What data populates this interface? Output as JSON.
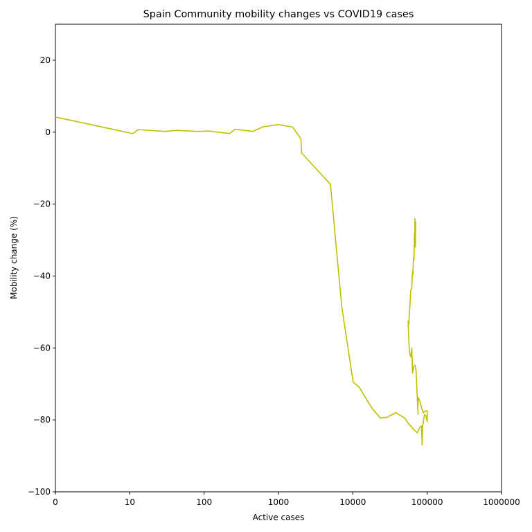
{
  "chart_data": {
    "type": "line",
    "title": "Spain Community mobility changes vs COVID19 cases",
    "xlabel": "Active cases",
    "ylabel": "Mobility change (%)",
    "x_scale": "log",
    "xlim": [
      1,
      1000000
    ],
    "ylim": [
      -100,
      30
    ],
    "grid": false,
    "x_ticks": [
      {
        "value": 1,
        "label": "0"
      },
      {
        "value": 10,
        "label": "10"
      },
      {
        "value": 100,
        "label": "100"
      },
      {
        "value": 1000,
        "label": "1000"
      },
      {
        "value": 10000,
        "label": "10000"
      },
      {
        "value": 100000,
        "label": "100000"
      },
      {
        "value": 1000000,
        "label": "1000000"
      }
    ],
    "y_ticks": [
      {
        "value": 20,
        "label": "20"
      },
      {
        "value": 0,
        "label": "0"
      },
      {
        "value": -20,
        "label": "−20"
      },
      {
        "value": -40,
        "label": "−40"
      },
      {
        "value": -60,
        "label": "−60"
      },
      {
        "value": -80,
        "label": "−80"
      },
      {
        "value": -100,
        "label": "−100"
      }
    ],
    "series": [
      {
        "color": "#bfbf00",
        "points": [
          [
            1,
            4.2
          ],
          [
            11,
            -0.4
          ],
          [
            13,
            0.7
          ],
          [
            30,
            0.2
          ],
          [
            42,
            0.5
          ],
          [
            80,
            0.2
          ],
          [
            115,
            0.3
          ],
          [
            220,
            -0.4
          ],
          [
            260,
            0.8
          ],
          [
            450,
            0.2
          ],
          [
            620,
            1.5
          ],
          [
            1000,
            2.1
          ],
          [
            1550,
            1.4
          ],
          [
            2000,
            -1.8
          ],
          [
            2050,
            -5.8
          ],
          [
            5000,
            -14.5
          ],
          [
            7100,
            -48.5
          ],
          [
            10100,
            -69.5
          ],
          [
            12300,
            -71.0
          ],
          [
            15500,
            -74.5
          ],
          [
            18500,
            -77.0
          ],
          [
            23500,
            -79.5
          ],
          [
            28500,
            -79.3
          ],
          [
            38000,
            -78.0
          ],
          [
            50000,
            -79.5
          ],
          [
            55000,
            -80.8
          ],
          [
            62000,
            -82.0
          ],
          [
            68000,
            -83.0
          ],
          [
            74000,
            -83.6
          ],
          [
            80000,
            -82.0
          ],
          [
            84000,
            -81.7
          ],
          [
            85500,
            -87.0
          ],
          [
            86500,
            -82.0
          ],
          [
            92000,
            -78.5
          ],
          [
            96000,
            -78.8
          ],
          [
            100000,
            -80.5
          ],
          [
            100500,
            -77.5
          ],
          [
            95000,
            -77.5
          ],
          [
            89000,
            -78.0
          ],
          [
            85000,
            -77.0
          ],
          [
            80000,
            -74.8
          ],
          [
            76000,
            -73.8
          ],
          [
            75000,
            -76.5
          ],
          [
            75500,
            -78.5
          ],
          [
            74500,
            -76.0
          ],
          [
            73500,
            -73.5
          ],
          [
            71000,
            -66.5
          ],
          [
            69000,
            -64.8
          ],
          [
            66500,
            -65.0
          ],
          [
            64000,
            -66.5
          ],
          [
            63500,
            -67.0
          ],
          [
            63000,
            -64.0
          ],
          [
            62000,
            -60.0
          ],
          [
            60500,
            -62.5
          ],
          [
            59000,
            -62.0
          ],
          [
            57500,
            -60.5
          ],
          [
            56000,
            -55.5
          ],
          [
            55500,
            -52.5
          ],
          [
            56500,
            -53.5
          ],
          [
            58500,
            -48.5
          ],
          [
            60000,
            -44.0
          ],
          [
            62000,
            -43.5
          ],
          [
            63000,
            -40.0
          ],
          [
            64000,
            -38.5
          ],
          [
            64500,
            -39.5
          ],
          [
            65000,
            -36.0
          ],
          [
            66000,
            -34.5
          ],
          [
            66500,
            -35.5
          ],
          [
            67500,
            -28.0
          ],
          [
            68000,
            -31.5
          ],
          [
            68500,
            -24.0
          ],
          [
            69000,
            -29.0
          ],
          [
            69500,
            -32.0
          ],
          [
            70000,
            -25.0
          ],
          [
            69500,
            -27.5
          ]
        ]
      }
    ]
  }
}
